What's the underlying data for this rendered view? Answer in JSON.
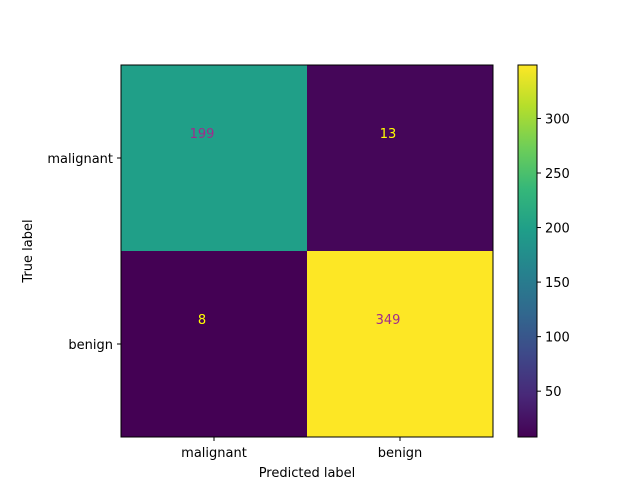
{
  "chart_data": {
    "type": "heatmap",
    "title": "",
    "xlabel": "Predicted label",
    "ylabel": "True label",
    "x_categories": [
      "malignant",
      "benign"
    ],
    "y_categories": [
      "malignant",
      "benign"
    ],
    "values": [
      [
        199,
        13
      ],
      [
        8,
        349
      ]
    ],
    "colormap": "viridis",
    "colorbar": {
      "range": [
        8,
        349
      ],
      "ticks": [
        50,
        100,
        150,
        200,
        250,
        300
      ],
      "tick_labels": [
        "50",
        "100",
        "150",
        "200",
        "250",
        "300"
      ]
    },
    "text_colors": {
      "on_dark": "#ffff00",
      "on_light": "#a02c8c"
    },
    "grid": false
  }
}
